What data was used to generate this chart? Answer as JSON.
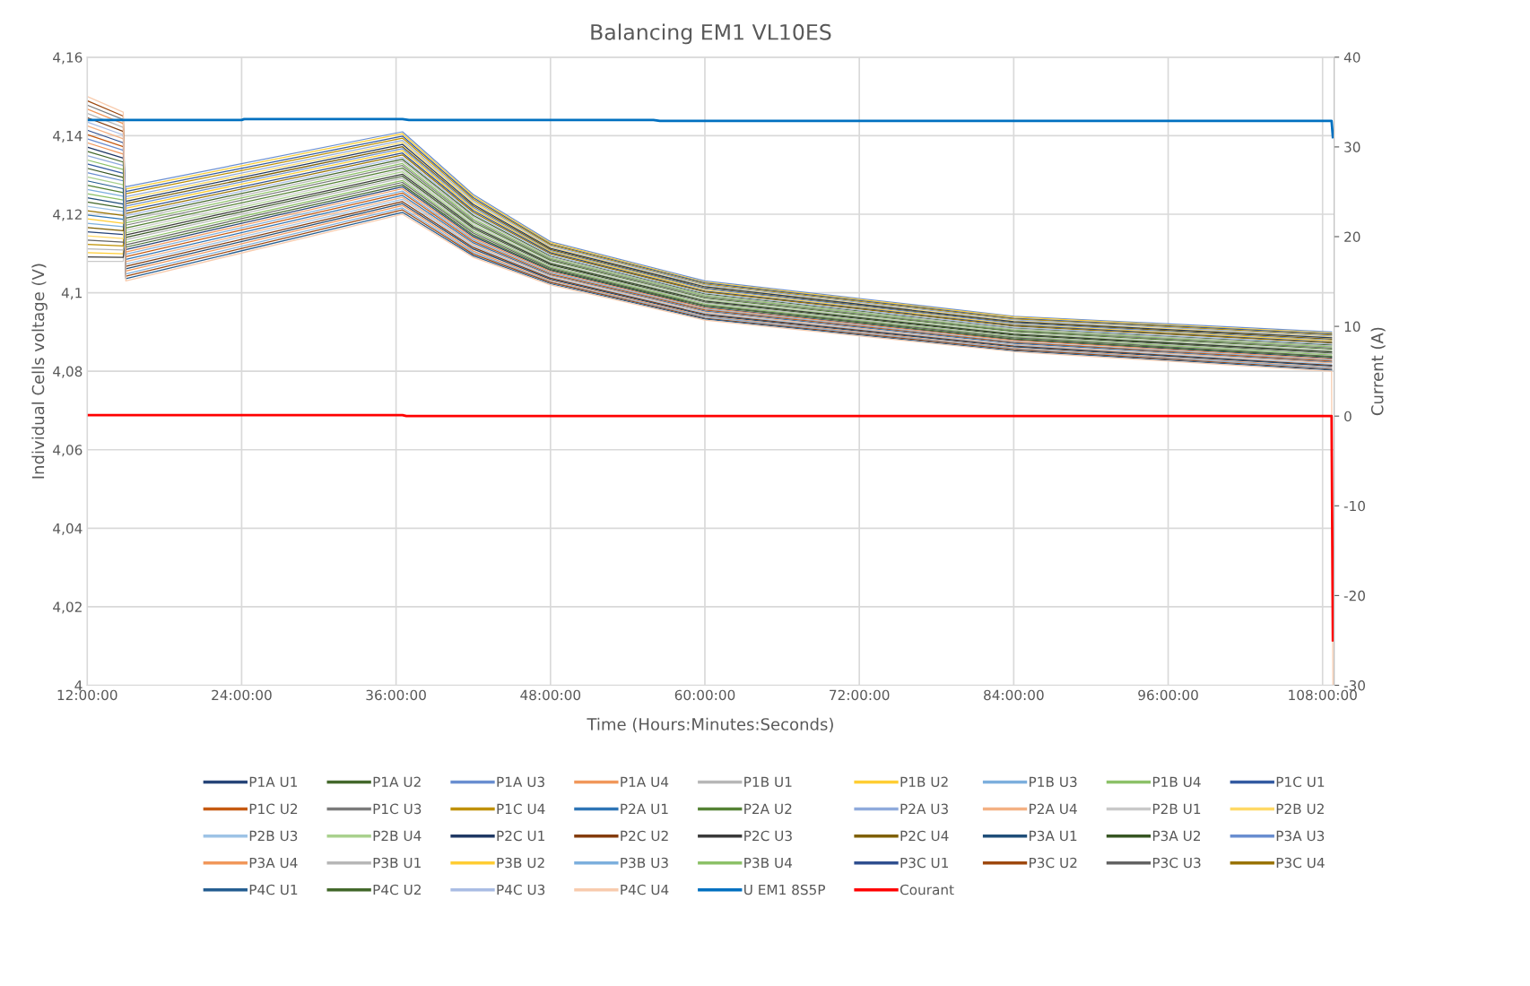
{
  "chart_data": {
    "type": "line",
    "title": "Balancing EM1 VL10ES",
    "xlabel": "Time (Hours:Minutes:Seconds)",
    "ylabel": "Individual Cells voltage (V)",
    "y2label": "Current (A)",
    "x": [
      12,
      14.8,
      15,
      36.5,
      42,
      48,
      60,
      84,
      108.7
    ],
    "xlim": [
      12,
      108.9
    ],
    "xticks": [
      {
        "value": 12,
        "label": "12:00:00"
      },
      {
        "value": 24,
        "label": "24:00:00"
      },
      {
        "value": 36,
        "label": "36:00:00"
      },
      {
        "value": 48,
        "label": "48:00:00"
      },
      {
        "value": 60,
        "label": "60:00:00"
      },
      {
        "value": 72,
        "label": "72:00:00"
      },
      {
        "value": 84,
        "label": "84:00:00"
      },
      {
        "value": 96,
        "label": "96:00:00"
      },
      {
        "value": 108,
        "label": "108:00:00"
      }
    ],
    "ylim": [
      4,
      4.16
    ],
    "yticks": [
      4,
      {
        "value": 4.02,
        "label": "4,02"
      },
      {
        "value": 4.04,
        "label": "4,04"
      },
      {
        "value": 4.06,
        "label": "4,06"
      },
      {
        "value": 4.08,
        "label": "4,08"
      },
      {
        "value": 4.1,
        "label": "4,1"
      },
      {
        "value": 4.12,
        "label": "4,12"
      },
      {
        "value": 4.14,
        "label": "4,14"
      },
      {
        "value": 4.16,
        "label": "4,16"
      }
    ],
    "y2lim": [
      -30,
      40
    ],
    "y2ticks": [
      -30,
      -20,
      -10,
      0,
      10,
      20,
      30,
      40
    ],
    "grid": true,
    "legend": "bottom",
    "line_style": "solid",
    "marker": "none",
    "series": [
      {
        "name": "P1A U1",
        "color": "#264478",
        "values": [
          4.1155,
          4.1148,
          4.111,
          4.127,
          4.1143,
          4.1057,
          4.0963,
          4.088,
          4.0833
        ]
      },
      {
        "name": "P1A U2",
        "color": "#43682B",
        "values": [
          4.1231,
          4.1216,
          4.119,
          4.134,
          4.1197,
          4.1093,
          4.0997,
          4.091,
          4.0867
        ]
      },
      {
        "name": "P1A U3",
        "color": "#698ED0",
        "values": [
          4.1306,
          4.1285,
          4.127,
          4.141,
          4.125,
          4.113,
          4.103,
          4.094,
          4.09
        ]
      },
      {
        "name": "P1A U4",
        "color": "#F1975A",
        "values": [
          4.1382,
          4.1353,
          4.1104,
          4.1265,
          4.1139,
          4.1054,
          4.0961,
          4.0878,
          4.0831
        ]
      },
      {
        "name": "P1B U1",
        "color": "#B7B7B7",
        "values": [
          4.1457,
          4.1421,
          4.1184,
          4.1335,
          4.1193,
          4.1091,
          4.0994,
          4.0908,
          4.0864
        ]
      },
      {
        "name": "P1B U2",
        "color": "#FFCD33",
        "values": [
          4.1102,
          4.1099,
          4.1264,
          4.1405,
          4.1246,
          4.1127,
          4.1027,
          4.0938,
          4.0897
        ]
      },
      {
        "name": "P1B U3",
        "color": "#7CAFDD",
        "values": [
          4.1177,
          4.1168,
          4.1098,
          4.1259,
          4.1135,
          4.1051,
          4.0958,
          4.0875,
          4.0828
        ]
      },
      {
        "name": "P1B U4",
        "color": "#8CC168",
        "values": [
          4.1252,
          4.1236,
          4.1178,
          4.1329,
          4.1188,
          4.1088,
          4.0992,
          4.0905,
          4.0862
        ]
      },
      {
        "name": "P1C U1",
        "color": "#335AA1",
        "values": [
          4.1328,
          4.1304,
          4.1258,
          4.1399,
          4.1242,
          4.1124,
          4.1025,
          4.0935,
          4.0895
        ]
      },
      {
        "name": "P1C U2",
        "color": "#C55A11",
        "values": [
          4.1403,
          4.1372,
          4.1092,
          4.1254,
          4.1131,
          4.1048,
          4.0956,
          4.0873,
          4.0826
        ]
      },
      {
        "name": "P1C U3",
        "color": "#7B7B7B",
        "values": [
          4.1478,
          4.1441,
          4.1172,
          4.1324,
          4.1184,
          4.1085,
          4.0989,
          4.0903,
          4.0859
        ]
      },
      {
        "name": "P1C U4",
        "color": "#BF9000",
        "values": [
          4.1123,
          4.1119,
          4.1252,
          4.1394,
          4.1238,
          4.1122,
          4.1022,
          4.0933,
          4.0892
        ]
      },
      {
        "name": "P2A U1",
        "color": "#2E75B6",
        "values": [
          4.1198,
          4.1187,
          4.1085,
          4.1248,
          4.1127,
          4.1045,
          4.0953,
          4.0871,
          4.0823
        ]
      },
      {
        "name": "P2A U2",
        "color": "#548235",
        "values": [
          4.1274,
          4.1255,
          4.1165,
          4.1318,
          4.118,
          4.1082,
          4.0986,
          4.0901,
          4.0856
        ]
      },
      {
        "name": "P2A U3",
        "color": "#8FAADC",
        "values": [
          4.1349,
          4.1324,
          4.1245,
          4.1388,
          4.1234,
          4.1119,
          4.102,
          4.0931,
          4.089
        ]
      },
      {
        "name": "P2A U4",
        "color": "#F4B183",
        "values": [
          4.1425,
          4.1392,
          4.1079,
          4.1243,
          4.1123,
          4.1043,
          4.0951,
          4.0868,
          4.0821
        ]
      },
      {
        "name": "P2B U1",
        "color": "#C9C9C9",
        "values": [
          4.108,
          4.108,
          4.1159,
          4.1313,
          4.1176,
          4.1079,
          4.0984,
          4.0898,
          4.0854
        ]
      },
      {
        "name": "P2B U2",
        "color": "#FFD966",
        "values": [
          4.1145,
          4.1138,
          4.1239,
          4.1383,
          4.123,
          4.1116,
          4.1017,
          4.0928,
          4.0887
        ]
      },
      {
        "name": "P2B U3",
        "color": "#9DC3E6",
        "values": [
          4.122,
          4.1207,
          4.1073,
          4.1238,
          4.1119,
          4.104,
          4.0948,
          4.0866,
          4.0818
        ]
      },
      {
        "name": "P2B U4",
        "color": "#A9D18E",
        "values": [
          4.1295,
          4.1275,
          4.1153,
          4.1308,
          4.1172,
          4.1076,
          4.0981,
          4.0896,
          4.0851
        ]
      },
      {
        "name": "P2C U1",
        "color": "#1F3864",
        "values": [
          4.1371,
          4.1343,
          4.1233,
          4.1378,
          4.1225,
          4.1113,
          4.1015,
          4.0926,
          4.0885
        ]
      },
      {
        "name": "P2C U2",
        "color": "#843C0C",
        "values": [
          4.1446,
          4.1411,
          4.1067,
          4.1232,
          4.1115,
          4.1037,
          4.0945,
          4.0864,
          4.0815
        ]
      },
      {
        "name": "P2C U3",
        "color": "#3A3A3A",
        "values": [
          4.1091,
          4.109,
          4.1147,
          4.1302,
          4.1168,
          4.1074,
          4.0979,
          4.0894,
          4.0849
        ]
      },
      {
        "name": "P2C U4",
        "color": "#7F6000",
        "values": [
          4.1166,
          4.1158,
          4.1227,
          4.1372,
          4.1221,
          4.111,
          4.1012,
          4.0924,
          4.0882
        ]
      },
      {
        "name": "P3A U1",
        "color": "#1F4E79",
        "values": [
          4.1242,
          4.1226,
          4.1061,
          4.1227,
          4.1111,
          4.1034,
          4.0943,
          4.0862,
          4.0813
        ]
      },
      {
        "name": "P3A U2",
        "color": "#375623",
        "values": [
          4.1317,
          4.1294,
          4.1141,
          4.1297,
          4.1164,
          4.1071,
          4.0976,
          4.0892,
          4.0846
        ]
      },
      {
        "name": "P3A U3",
        "color": "#698ED0",
        "values": [
          4.1392,
          4.1363,
          4.1221,
          4.1367,
          4.1217,
          4.1107,
          4.101,
          4.0922,
          4.0879
        ]
      },
      {
        "name": "P3A U4",
        "color": "#F1975A",
        "values": [
          4.1468,
          4.1431,
          4.1055,
          4.1222,
          4.1106,
          4.1031,
          4.094,
          4.0859,
          4.081
        ]
      },
      {
        "name": "P3B U1",
        "color": "#B7B7B7",
        "values": [
          4.1112,
          4.1109,
          4.1135,
          4.1292,
          4.116,
          4.1068,
          4.0974,
          4.0889,
          4.0844
        ]
      },
      {
        "name": "P3B U2",
        "color": "#FFCD33",
        "values": [
          4.1188,
          4.1177,
          4.1215,
          4.1362,
          4.1213,
          4.1105,
          4.1007,
          4.0919,
          4.0877
        ]
      },
      {
        "name": "P3B U3",
        "color": "#7CAFDD",
        "values": [
          4.1263,
          4.1246,
          4.1048,
          4.1216,
          4.1102,
          4.1028,
          4.0938,
          4.0857,
          4.0808
        ]
      },
      {
        "name": "P3B U4",
        "color": "#8CC168",
        "values": [
          4.1338,
          4.1314,
          4.1128,
          4.1286,
          4.1156,
          4.1065,
          4.0971,
          4.0887,
          4.0841
        ]
      },
      {
        "name": "P3C U1",
        "color": "#2F4F8F",
        "values": [
          4.1414,
          4.1382,
          4.1208,
          4.1356,
          4.1209,
          4.1102,
          4.1004,
          4.0917,
          4.0874
        ]
      },
      {
        "name": "P3C U2",
        "color": "#9E480E",
        "values": [
          4.1489,
          4.145,
          4.1042,
          4.1211,
          4.1098,
          4.1026,
          4.0935,
          4.0855,
          4.0805
        ]
      },
      {
        "name": "P3C U3",
        "color": "#636363",
        "values": [
          4.1134,
          4.1129,
          4.1122,
          4.1281,
          4.1152,
          4.1062,
          4.0968,
          4.0885,
          4.0838
        ]
      },
      {
        "name": "P3C U4",
        "color": "#997300",
        "values": [
          4.1209,
          4.1197,
          4.1202,
          4.1351,
          4.1205,
          4.1099,
          4.1002,
          4.0915,
          4.0872
        ]
      },
      {
        "name": "P4C U1",
        "color": "#255E91",
        "values": [
          4.1285,
          4.1265,
          4.1036,
          4.1205,
          4.1094,
          4.1023,
          4.0933,
          4.0852,
          4.0803
        ]
      },
      {
        "name": "P4C U2",
        "color": "#43682B",
        "values": [
          4.136,
          4.1333,
          4.1116,
          4.1275,
          4.1147,
          4.1059,
          4.0966,
          4.0882,
          4.0836
        ]
      },
      {
        "name": "P4C U3",
        "color": "#A9BCE4",
        "values": [
          4.1435,
          4.1402,
          4.1196,
          4.1345,
          4.1201,
          4.1096,
          4.0999,
          4.0912,
          4.0869
        ]
      },
      {
        "name": "P4C U4",
        "color": "#F8CBAD",
        "x": [
          12,
          14.8,
          15,
          36.5,
          42,
          48,
          60,
          84,
          108.7,
          108.8
        ],
        "values": [
          4.15,
          4.146,
          4.103,
          4.12,
          4.109,
          4.102,
          4.093,
          4.085,
          4.08,
          4.0
        ]
      },
      {
        "name": "U EM1 8S5P",
        "color": "#0070C0",
        "axis": "y2",
        "x": [
          12,
          24,
          24.2,
          36.5,
          37,
          56,
          56.5,
          108.7,
          108.8
        ],
        "values": [
          33.0,
          33.0,
          33.1,
          33.1,
          33.0,
          33.0,
          32.9,
          32.9,
          31.1
        ]
      },
      {
        "name": "Courant",
        "color": "#FF0000",
        "axis": "y2",
        "x": [
          12,
          36.5,
          36.8,
          108.7,
          108.8
        ],
        "values": [
          0.1,
          0.1,
          0,
          0,
          -25
        ]
      }
    ]
  }
}
